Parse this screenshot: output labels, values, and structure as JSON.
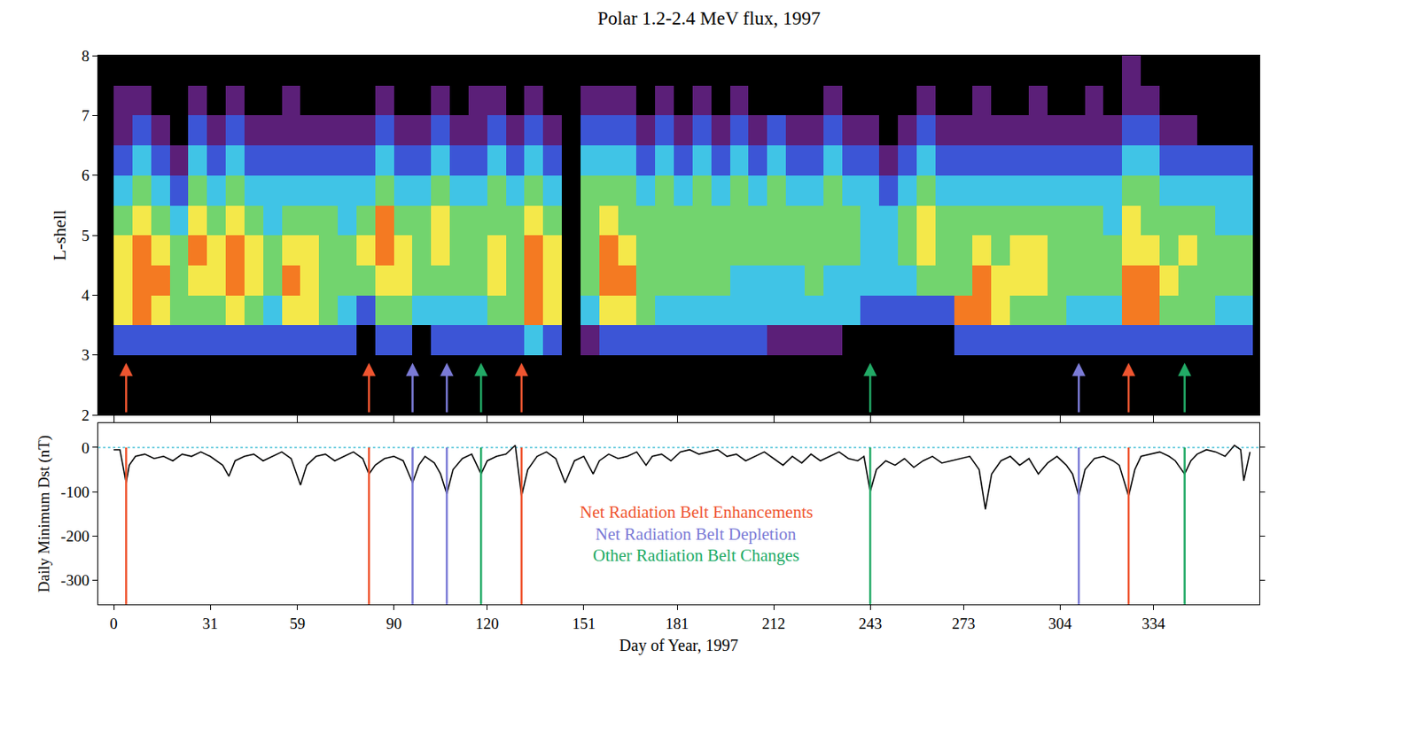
{
  "chart_data": [
    {
      "type": "heatmap",
      "title": "Polar 1.2-2.4 MeV flux, 1997",
      "y_label": "L-shell",
      "x": [
        3,
        9,
        15,
        21,
        27,
        33,
        39,
        45,
        51,
        57,
        63,
        69,
        75,
        81,
        87,
        93,
        99,
        105,
        111,
        117,
        123,
        129,
        135,
        141,
        147,
        153,
        159,
        165,
        171,
        177,
        183,
        189,
        195,
        201,
        207,
        213,
        219,
        225,
        231,
        237,
        243,
        249,
        255,
        261,
        267,
        273,
        279,
        285,
        291,
        297,
        303,
        309,
        315,
        321,
        327,
        333,
        339,
        345,
        351,
        357,
        363
      ],
      "y": [
        3.25,
        3.75,
        4.25,
        4.75,
        5.25,
        5.75,
        6.25,
        6.75,
        7.25,
        7.75
      ],
      "cells": [
        [
          2,
          5,
          5,
          5,
          4,
          3,
          2,
          1,
          1,
          null
        ],
        [
          2,
          6,
          6,
          6,
          5,
          4,
          3,
          2,
          1,
          null
        ],
        [
          2,
          5,
          6,
          5,
          4,
          3,
          2,
          1,
          null,
          null
        ],
        [
          2,
          4,
          4,
          4,
          3,
          2,
          1,
          null,
          null,
          null
        ],
        [
          2,
          4,
          5,
          6,
          5,
          4,
          3,
          2,
          1,
          null
        ],
        [
          2,
          4,
          5,
          5,
          4,
          3,
          2,
          1,
          null,
          null
        ],
        [
          2,
          5,
          6,
          6,
          5,
          4,
          3,
          2,
          1,
          null
        ],
        [
          2,
          4,
          5,
          5,
          4,
          3,
          2,
          1,
          null,
          null
        ],
        [
          2,
          3,
          4,
          4,
          3,
          3,
          2,
          1,
          null,
          null
        ],
        [
          2,
          5,
          6,
          5,
          4,
          3,
          2,
          1,
          1,
          null
        ],
        [
          2,
          5,
          5,
          5,
          4,
          3,
          2,
          1,
          null,
          null
        ],
        [
          2,
          4,
          4,
          4,
          4,
          3,
          2,
          1,
          null,
          null
        ],
        [
          2,
          3,
          4,
          4,
          3,
          3,
          2,
          1,
          null,
          null
        ],
        [
          null,
          2,
          4,
          5,
          4,
          3,
          2,
          1,
          null,
          null
        ],
        [
          2,
          4,
          5,
          6,
          6,
          4,
          3,
          2,
          1,
          null
        ],
        [
          2,
          4,
          5,
          5,
          4,
          3,
          2,
          1,
          null,
          null
        ],
        [
          null,
          3,
          4,
          4,
          4,
          3,
          2,
          1,
          null,
          null
        ],
        [
          2,
          3,
          4,
          5,
          5,
          4,
          3,
          2,
          1,
          null
        ],
        [
          2,
          3,
          4,
          4,
          4,
          3,
          2,
          1,
          null,
          null
        ],
        [
          2,
          3,
          4,
          4,
          4,
          3,
          2,
          1,
          1,
          null
        ],
        [
          2,
          4,
          5,
          5,
          4,
          4,
          3,
          2,
          1,
          null
        ],
        [
          2,
          4,
          4,
          4,
          4,
          3,
          2,
          1,
          null,
          null
        ],
        [
          3,
          6,
          6,
          6,
          5,
          4,
          3,
          2,
          1,
          null
        ],
        [
          2,
          5,
          5,
          5,
          4,
          3,
          2,
          1,
          null,
          null
        ],
        [
          null,
          null,
          null,
          null,
          null,
          null,
          null,
          null,
          null,
          null
        ],
        [
          1,
          3,
          4,
          4,
          4,
          4,
          3,
          2,
          1,
          null
        ],
        [
          2,
          5,
          6,
          6,
          5,
          4,
          3,
          2,
          1,
          null
        ],
        [
          2,
          5,
          6,
          5,
          4,
          4,
          3,
          2,
          1,
          null
        ],
        [
          2,
          4,
          4,
          4,
          4,
          3,
          2,
          1,
          null,
          null
        ],
        [
          2,
          3,
          4,
          4,
          4,
          4,
          3,
          2,
          1,
          null
        ],
        [
          2,
          3,
          4,
          4,
          4,
          3,
          2,
          1,
          null,
          null
        ],
        [
          2,
          3,
          4,
          4,
          4,
          4,
          3,
          2,
          1,
          null
        ],
        [
          2,
          3,
          4,
          4,
          4,
          3,
          2,
          1,
          null,
          null
        ],
        [
          2,
          3,
          3,
          4,
          4,
          4,
          3,
          2,
          1,
          null
        ],
        [
          2,
          3,
          3,
          4,
          4,
          3,
          2,
          1,
          null,
          null
        ],
        [
          1,
          3,
          3,
          4,
          4,
          4,
          3,
          2,
          null,
          null
        ],
        [
          1,
          3,
          3,
          4,
          4,
          3,
          2,
          1,
          null,
          null
        ],
        [
          1,
          3,
          4,
          4,
          4,
          3,
          2,
          1,
          null,
          null
        ],
        [
          1,
          3,
          3,
          4,
          4,
          4,
          3,
          2,
          1,
          null
        ],
        [
          null,
          3,
          3,
          4,
          4,
          3,
          2,
          1,
          null,
          null
        ],
        [
          null,
          2,
          3,
          3,
          3,
          3,
          2,
          1,
          null,
          null
        ],
        [
          null,
          2,
          3,
          3,
          3,
          2,
          1,
          null,
          null,
          null
        ],
        [
          null,
          2,
          3,
          4,
          4,
          3,
          2,
          1,
          null,
          null
        ],
        [
          null,
          2,
          4,
          5,
          5,
          4,
          3,
          2,
          1,
          null
        ],
        [
          null,
          2,
          4,
          4,
          4,
          3,
          2,
          1,
          null,
          null
        ],
        [
          2,
          6,
          4,
          4,
          4,
          3,
          2,
          1,
          null,
          null
        ],
        [
          2,
          6,
          6,
          5,
          4,
          3,
          2,
          1,
          1,
          null
        ],
        [
          2,
          5,
          5,
          4,
          4,
          3,
          2,
          1,
          null,
          null
        ],
        [
          2,
          4,
          5,
          5,
          4,
          3,
          2,
          1,
          null,
          null
        ],
        [
          2,
          4,
          5,
          5,
          4,
          3,
          2,
          1,
          1,
          null
        ],
        [
          2,
          4,
          4,
          4,
          4,
          3,
          2,
          1,
          null,
          null
        ],
        [
          2,
          3,
          4,
          4,
          4,
          3,
          2,
          1,
          null,
          null
        ],
        [
          2,
          3,
          4,
          4,
          4,
          3,
          2,
          1,
          1,
          null
        ],
        [
          2,
          3,
          4,
          4,
          3,
          3,
          2,
          1,
          null,
          null
        ],
        [
          2,
          6,
          6,
          5,
          5,
          4,
          3,
          2,
          1,
          1
        ],
        [
          2,
          6,
          6,
          5,
          4,
          4,
          3,
          2,
          1,
          null
        ],
        [
          2,
          4,
          5,
          4,
          4,
          3,
          2,
          1,
          null,
          null
        ],
        [
          2,
          4,
          4,
          5,
          4,
          3,
          2,
          1,
          null,
          null
        ],
        [
          2,
          4,
          4,
          4,
          4,
          3,
          2,
          null,
          null,
          null
        ],
        [
          2,
          3,
          4,
          4,
          3,
          3,
          2,
          null,
          null,
          null
        ],
        [
          2,
          3,
          4,
          4,
          3,
          3,
          2,
          null,
          null,
          null
        ]
      ],
      "colors": [
        "#5b1f78",
        "#3c55d6",
        "#40c4e6",
        "#72d46e",
        "#f4e84a",
        "#f47a22"
      ],
      "zlim": [
        1,
        6
      ],
      "xlim": [
        -5,
        368
      ],
      "xticks": [
        0,
        31,
        59,
        90,
        120,
        151,
        181,
        212,
        243,
        273,
        304,
        334
      ],
      "ylim": [
        2,
        8
      ],
      "yticks": [
        2,
        3,
        4,
        5,
        6,
        7,
        8
      ],
      "tick_labels": "y"
    },
    {
      "type": "line",
      "x_label": "Day of Year, 1997",
      "y_label": "Daily Minimum Dst (nT)",
      "x": [
        0,
        2,
        4,
        5,
        7,
        10,
        13,
        16,
        19,
        22,
        25,
        28,
        31,
        35,
        37,
        39,
        42,
        45,
        48,
        51,
        54,
        57,
        60,
        62,
        65,
        68,
        71,
        74,
        77,
        80,
        82,
        84,
        87,
        90,
        93,
        96,
        98,
        100,
        103,
        105,
        107,
        109,
        112,
        115,
        118,
        120,
        123,
        126,
        129,
        131,
        133,
        136,
        139,
        142,
        145,
        148,
        151,
        154,
        156,
        159,
        162,
        165,
        168,
        171,
        173,
        176,
        179,
        182,
        185,
        188,
        191,
        194,
        197,
        200,
        203,
        206,
        209,
        212,
        215,
        218,
        221,
        224,
        227,
        230,
        233,
        236,
        239,
        241,
        243,
        245,
        248,
        251,
        254,
        257,
        260,
        263,
        266,
        269,
        272,
        275,
        278,
        280,
        282,
        285,
        288,
        291,
        294,
        297,
        300,
        303,
        306,
        308,
        310,
        312,
        315,
        318,
        321,
        323,
        326,
        328,
        330,
        333,
        336,
        339,
        341,
        344,
        346,
        348,
        351,
        354,
        357,
        360,
        362,
        363,
        365
      ],
      "values": [
        -5,
        -5,
        -80,
        -40,
        -20,
        -15,
        -25,
        -20,
        -30,
        -15,
        -20,
        -10,
        -20,
        -40,
        -65,
        -30,
        -20,
        -15,
        -30,
        -20,
        -10,
        -25,
        -85,
        -40,
        -20,
        -15,
        -30,
        -20,
        -10,
        -25,
        -60,
        -40,
        -25,
        -20,
        -30,
        -80,
        -40,
        -20,
        -35,
        -60,
        -105,
        -50,
        -25,
        -15,
        -60,
        -30,
        -20,
        -15,
        5,
        -110,
        -50,
        -20,
        -10,
        -25,
        -80,
        -30,
        -20,
        -60,
        -30,
        -15,
        -25,
        -20,
        -10,
        -40,
        -20,
        -15,
        -30,
        -10,
        -5,
        -15,
        -10,
        -5,
        -20,
        -15,
        -30,
        -20,
        -10,
        -25,
        -40,
        -20,
        -35,
        -15,
        -30,
        -20,
        -10,
        -25,
        -30,
        -20,
        -100,
        -50,
        -30,
        -40,
        -25,
        -45,
        -30,
        -20,
        -35,
        -30,
        -25,
        -20,
        -50,
        -140,
        -60,
        -30,
        -20,
        -40,
        -25,
        -60,
        -35,
        -20,
        -40,
        -60,
        -110,
        -50,
        -25,
        -20,
        -30,
        -40,
        -110,
        -50,
        -20,
        -15,
        -10,
        -20,
        -30,
        -60,
        -30,
        -15,
        -5,
        -10,
        -20,
        5,
        -5,
        -75,
        -10
      ],
      "color": "#000000",
      "xlim": [
        -5,
        368
      ],
      "xticks": [
        0,
        31,
        59,
        90,
        120,
        151,
        181,
        212,
        243,
        273,
        304,
        334
      ],
      "ylim": [
        -355,
        55
      ],
      "yticks": [
        0,
        -100,
        -200,
        -300
      ],
      "reference_line": 0,
      "annotations": [
        {
          "text": "Net Radiation Belt Enhancements",
          "color": "#ef5530",
          "days": [
            4,
            82,
            131,
            326
          ]
        },
        {
          "text": "Net Radiation Belt Depletion",
          "color": "#7b7bd6",
          "days": [
            96,
            107,
            310
          ]
        },
        {
          "text": "Other Radiation Belt Changes",
          "color": "#22aa66",
          "days": [
            118,
            243,
            344
          ]
        }
      ]
    }
  ]
}
